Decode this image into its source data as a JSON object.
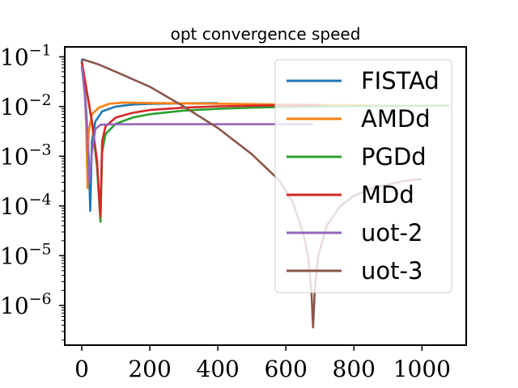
{
  "chart_data": {
    "type": "line",
    "title": "opt convergence speed",
    "xlabel": "",
    "ylabel": "",
    "xlim": [
      -50,
      1130
    ],
    "ylim_log10": [
      -6.8,
      -0.8
    ],
    "y_scale": "log",
    "grid": false,
    "legend_placement": "top-right",
    "x_ticks": [
      0,
      200,
      400,
      600,
      800,
      1000
    ],
    "x_tick_labels": [
      "0",
      "200",
      "400",
      "600",
      "800",
      "1000"
    ],
    "y_ticks": [
      -1,
      -2,
      -3,
      -4,
      -5,
      -6
    ],
    "y_tick_labels": [
      {
        "base": "10",
        "exp": "−1"
      },
      {
        "base": "10",
        "exp": "−2"
      },
      {
        "base": "10",
        "exp": "−3"
      },
      {
        "base": "10",
        "exp": "−4"
      },
      {
        "base": "10",
        "exp": "−5"
      },
      {
        "base": "10",
        "exp": "−6"
      }
    ],
    "series": [
      {
        "name": "FISTAd",
        "color": "#1f77b4",
        "points": [
          [
            0,
            0.09
          ],
          [
            8,
            0.03
          ],
          [
            15,
            0.005
          ],
          [
            20,
            0.0012
          ],
          [
            25,
            8e-05
          ],
          [
            30,
            0.002
          ],
          [
            40,
            0.005
          ],
          [
            60,
            0.008
          ],
          [
            100,
            0.01
          ],
          [
            150,
            0.011
          ],
          [
            200,
            0.0113
          ],
          [
            300,
            0.0116
          ],
          [
            400,
            0.0117
          ]
        ]
      },
      {
        "name": "AMDd",
        "color": "#ff7f0e",
        "points": [
          [
            0,
            0.08
          ],
          [
            8,
            0.03
          ],
          [
            13,
            0.004
          ],
          [
            17,
            0.00023
          ],
          [
            20,
            0.003
          ],
          [
            30,
            0.007
          ],
          [
            50,
            0.0095
          ],
          [
            80,
            0.0113
          ],
          [
            120,
            0.012
          ],
          [
            200,
            0.0118
          ],
          [
            400,
            0.0114
          ],
          [
            600,
            0.011
          ],
          [
            800,
            0.0106
          ],
          [
            880,
            0.0105
          ]
        ]
      },
      {
        "name": "PGDd",
        "color": "#2ca02c",
        "points": [
          [
            0,
            0.08
          ],
          [
            15,
            0.02
          ],
          [
            30,
            0.005
          ],
          [
            45,
            0.0006
          ],
          [
            55,
            4.8e-05
          ],
          [
            60,
            0.0012
          ],
          [
            70,
            0.0028
          ],
          [
            100,
            0.0045
          ],
          [
            150,
            0.006
          ],
          [
            200,
            0.007
          ],
          [
            300,
            0.0083
          ],
          [
            400,
            0.009
          ],
          [
            500,
            0.0095
          ],
          [
            600,
            0.0098
          ],
          [
            800,
            0.0102
          ],
          [
            1000,
            0.0104
          ],
          [
            1080,
            0.0105
          ]
        ]
      },
      {
        "name": "MDd",
        "color": "#d62728",
        "points": [
          [
            0,
            0.08
          ],
          [
            15,
            0.02
          ],
          [
            30,
            0.005
          ],
          [
            45,
            0.0008
          ],
          [
            55,
            6e-05
          ],
          [
            60,
            0.002
          ],
          [
            70,
            0.004
          ],
          [
            100,
            0.006
          ],
          [
            150,
            0.0075
          ],
          [
            200,
            0.0085
          ],
          [
            300,
            0.0095
          ],
          [
            400,
            0.0101
          ],
          [
            500,
            0.0104
          ],
          [
            600,
            0.0106
          ],
          [
            700,
            0.0107
          ]
        ]
      },
      {
        "name": "uot-2",
        "color": "#9467bd",
        "points": [
          [
            0,
            0.065
          ],
          [
            8,
            0.02
          ],
          [
            15,
            0.004
          ],
          [
            22,
            0.0003
          ],
          [
            30,
            0.0012
          ],
          [
            40,
            0.0035
          ],
          [
            55,
            0.0043
          ],
          [
            100,
            0.0044
          ],
          [
            300,
            0.0044
          ],
          [
            500,
            0.0044
          ],
          [
            680,
            0.0044
          ]
        ]
      },
      {
        "name": "uot-3",
        "color": "#8c564b",
        "points": [
          [
            0,
            0.09
          ],
          [
            50,
            0.07
          ],
          [
            100,
            0.05
          ],
          [
            200,
            0.025
          ],
          [
            300,
            0.01
          ],
          [
            400,
            0.0037
          ],
          [
            500,
            0.0011
          ],
          [
            580,
            0.00033
          ],
          [
            620,
            0.00012
          ],
          [
            650,
            3e-05
          ],
          [
            665,
            1e-05
          ],
          [
            675,
            2e-06
          ],
          [
            680,
            3.6e-07
          ],
          [
            685,
            2e-06
          ],
          [
            695,
            1e-05
          ],
          [
            720,
            4e-05
          ],
          [
            760,
            0.0001
          ],
          [
            800,
            0.00016
          ],
          [
            850,
            0.00022
          ],
          [
            900,
            0.00027
          ],
          [
            950,
            0.00032
          ],
          [
            1000,
            0.00035
          ]
        ]
      }
    ]
  }
}
